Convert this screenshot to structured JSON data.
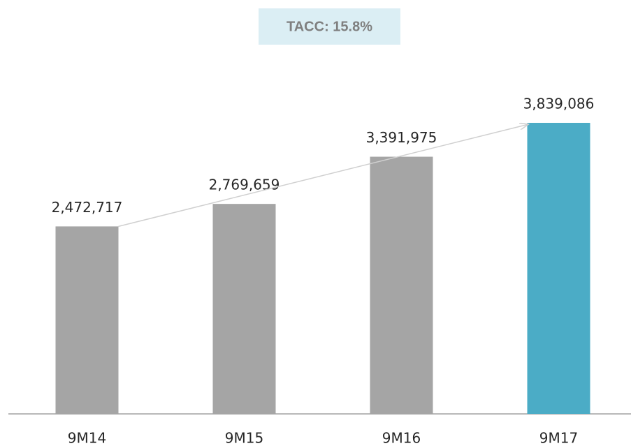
{
  "chart_data": {
    "type": "bar",
    "annotation": "TACC: 15.8%",
    "categories": [
      "9M14",
      "9M15",
      "9M16",
      "9M17"
    ],
    "values": [
      2472717,
      2769659,
      3391975,
      3839086
    ],
    "value_labels": [
      "2,472,717",
      "2,769,659",
      "3,391,975",
      "3,839,086"
    ],
    "colors": [
      "#a5a5a5",
      "#a5a5a5",
      "#a5a5a5",
      "#4bacc6"
    ],
    "ylim": [
      0,
      4000000
    ],
    "grid": false
  }
}
